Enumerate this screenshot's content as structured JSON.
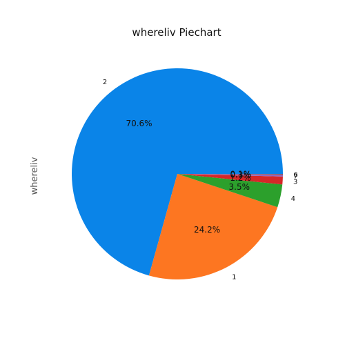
{
  "chart_data": {
    "type": "pie",
    "title": "whereliv Piechart",
    "ylabel": "whereliv",
    "slices": [
      {
        "label": "2",
        "value": 70.6,
        "pct_label": "70.6%",
        "color": "#0a84e8"
      },
      {
        "label": "1",
        "value": 24.2,
        "pct_label": "24.2%",
        "color": "#fd7621"
      },
      {
        "label": "4",
        "value": 3.5,
        "pct_label": "3.5%",
        "color": "#2ca02c"
      },
      {
        "label": "3",
        "value": 1.2,
        "pct_label": "1.2%",
        "color": "#d62728"
      },
      {
        "label": "7",
        "value": 0.3,
        "pct_label": "0.3%",
        "color": "#9467bd"
      },
      {
        "label": "6",
        "value": 0.1,
        "pct_label": "0.1%",
        "color": "#8c564b"
      }
    ],
    "start_angle_deg": 0,
    "direction": "counterclockwise"
  }
}
